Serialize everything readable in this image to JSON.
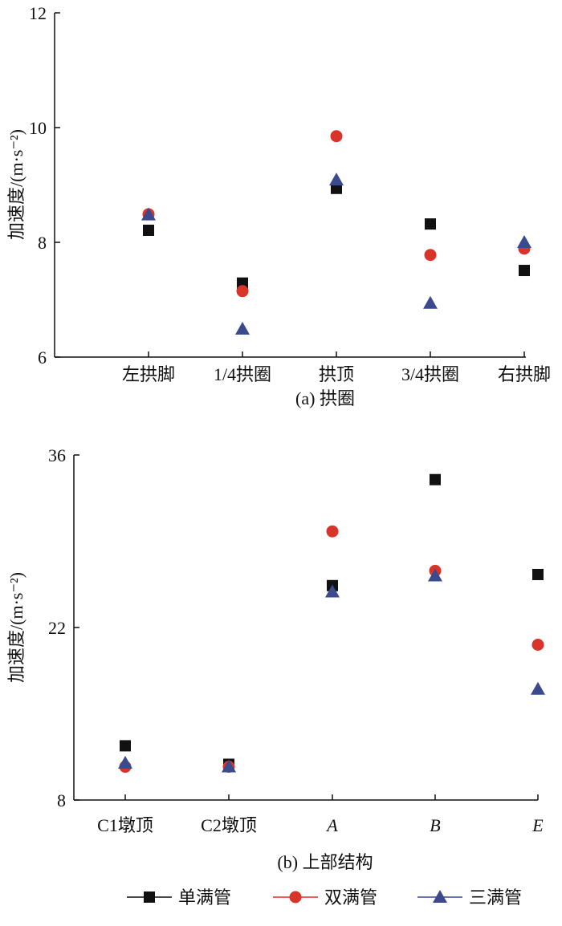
{
  "chart_data": [
    {
      "type": "scatter",
      "title": "(a) 拱圈",
      "ylabel": "加速度/(m·s⁻²)",
      "ylim": [
        6,
        12
      ],
      "yticks": [
        6,
        8,
        10,
        12
      ],
      "categories": [
        "左拱脚",
        "1/4拱圈",
        "拱顶",
        "3/4拱圈",
        "右拱脚"
      ],
      "series": [
        {
          "name": "单满管",
          "marker": "square",
          "color": "#111111",
          "values": [
            8.21,
            7.29,
            8.94,
            8.32,
            7.51
          ]
        },
        {
          "name": "双满管",
          "marker": "circle",
          "color": "#d8342a",
          "values": [
            8.49,
            7.15,
            9.85,
            7.78,
            7.89
          ]
        },
        {
          "name": "三满管",
          "marker": "triangle",
          "color": "#3b4a8c",
          "values": [
            8.48,
            6.49,
            9.09,
            6.94,
            8.0
          ]
        }
      ]
    },
    {
      "type": "scatter",
      "title": "(b) 上部结构",
      "ylabel": "加速度/(m·s⁻²)",
      "ylim": [
        8,
        36
      ],
      "yticks": [
        8,
        22,
        36
      ],
      "categories": [
        "C1墩顶",
        "C2墩顶",
        "A",
        "B",
        "E"
      ],
      "italic_categories": [
        "A",
        "B",
        "E"
      ],
      "series": [
        {
          "name": "单满管",
          "marker": "square",
          "color": "#111111",
          "values": [
            12.4,
            10.9,
            25.4,
            34.0,
            26.3
          ]
        },
        {
          "name": "双满管",
          "marker": "circle",
          "color": "#d8342a",
          "values": [
            10.7,
            10.7,
            29.8,
            26.6,
            20.6
          ]
        },
        {
          "name": "三满管",
          "marker": "triangle",
          "color": "#3b4a8c",
          "values": [
            11.0,
            10.7,
            24.9,
            26.2,
            17.0
          ]
        }
      ]
    }
  ],
  "legend": {
    "position": "bottom",
    "items": [
      "单满管",
      "双满管",
      "三满管"
    ]
  }
}
